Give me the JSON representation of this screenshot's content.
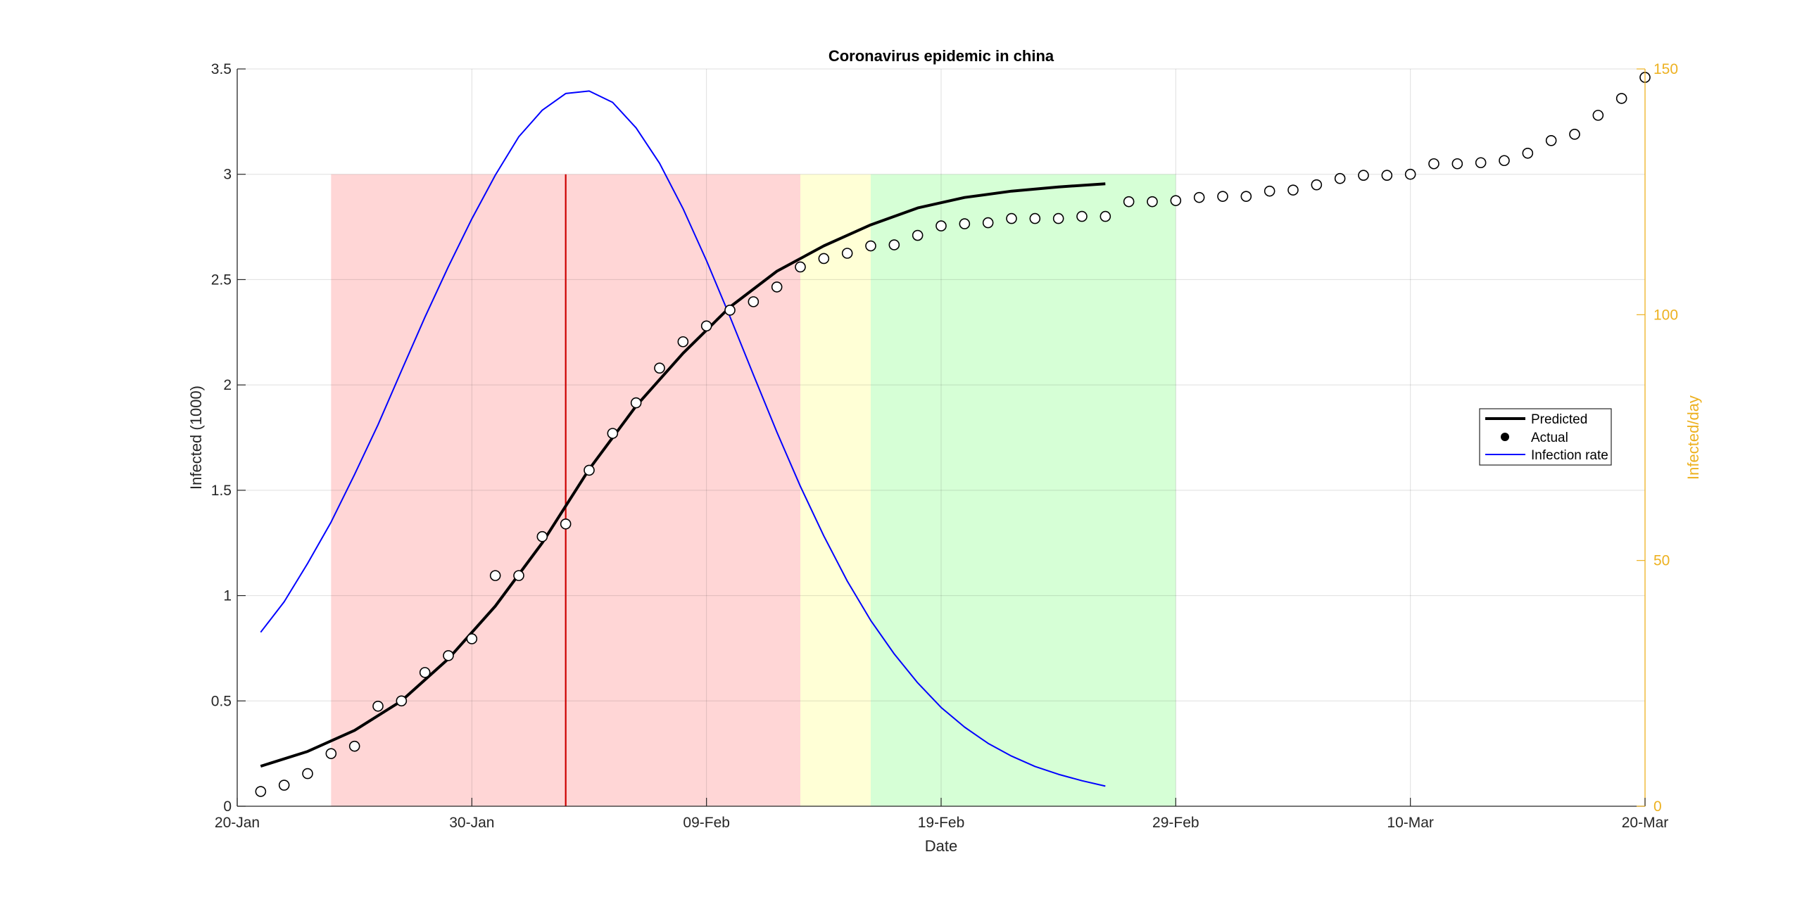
{
  "chart_data": {
    "type": "line",
    "title": "Coronavirus epidemic in china",
    "xlabel": "Date",
    "ylabel": "Infected (1000)",
    "y2label": "Infected/day",
    "x_ticks": [
      "20-Jan",
      "30-Jan",
      "09-Feb",
      "19-Feb",
      "29-Feb",
      "10-Mar",
      "20-Mar"
    ],
    "x_start": "20-Jan",
    "x_end": "20-Mar",
    "ylim": [
      0,
      3.5
    ],
    "y_ticks": [
      "0",
      "0.5",
      "1",
      "1.5",
      "2",
      "2.5",
      "3",
      "3.5"
    ],
    "y2lim": [
      0,
      150
    ],
    "y2_ticks": [
      "0",
      "50",
      "100",
      "150"
    ],
    "grid": true,
    "legend_position": "right",
    "colors": {
      "predicted": "#000000",
      "actual_marker": "#000000",
      "infection_rate": "#0000FF",
      "right_axis": "#EDB120",
      "vertical_line": "#CC0000",
      "shade_red": "#FFD6D6",
      "shade_yellow": "#FFFFD6",
      "shade_green": "#D6FFD6"
    },
    "shaded_regions": [
      {
        "from": "24-Jan",
        "to": "13-Feb",
        "color": "#FFD6D6",
        "ymax": 3.0
      },
      {
        "from": "13-Feb",
        "to": "16-Feb",
        "color": "#FFFFD6",
        "ymax": 3.0
      },
      {
        "from": "16-Feb",
        "to": "29-Feb",
        "color": "#D6FFD6",
        "ymax": 3.0
      }
    ],
    "vertical_line": {
      "x": "03-Feb",
      "ymax": 3.0
    },
    "series": [
      {
        "name": "Predicted",
        "axis": "left",
        "style": "line",
        "x": [
          "21-Jan",
          "23-Jan",
          "25-Jan",
          "27-Jan",
          "29-Jan",
          "31-Jan",
          "02-Feb",
          "04-Feb",
          "06-Feb",
          "08-Feb",
          "10-Feb",
          "12-Feb",
          "14-Feb",
          "16-Feb",
          "18-Feb",
          "20-Feb",
          "22-Feb",
          "24-Feb",
          "26-Feb"
        ],
        "values": [
          0.19,
          0.26,
          0.36,
          0.5,
          0.7,
          0.95,
          1.25,
          1.6,
          1.9,
          2.15,
          2.37,
          2.54,
          2.66,
          2.76,
          2.84,
          2.89,
          2.92,
          2.94,
          2.955
        ]
      },
      {
        "name": "Actual",
        "axis": "left",
        "style": "marker",
        "x": [
          "21-Jan",
          "22-Jan",
          "23-Jan",
          "24-Jan",
          "25-Jan",
          "26-Jan",
          "27-Jan",
          "28-Jan",
          "29-Jan",
          "30-Jan",
          "31-Jan",
          "01-Feb",
          "02-Feb",
          "03-Feb",
          "04-Feb",
          "05-Feb",
          "06-Feb",
          "07-Feb",
          "08-Feb",
          "09-Feb",
          "10-Feb",
          "11-Feb",
          "12-Feb",
          "13-Feb",
          "14-Feb",
          "15-Feb",
          "16-Feb",
          "17-Feb",
          "18-Feb",
          "19-Feb",
          "20-Feb",
          "21-Feb",
          "22-Feb",
          "23-Feb",
          "24-Feb",
          "25-Feb",
          "26-Feb",
          "27-Feb",
          "28-Feb",
          "29-Feb",
          "01-Mar",
          "02-Mar",
          "03-Mar",
          "04-Mar",
          "05-Mar",
          "06-Mar",
          "07-Mar",
          "08-Mar",
          "09-Mar",
          "10-Mar",
          "11-Mar",
          "12-Mar",
          "13-Mar",
          "14-Mar",
          "15-Mar",
          "16-Mar",
          "17-Mar",
          "18-Mar",
          "19-Mar",
          "20-Mar"
        ],
        "values": [
          0.07,
          0.1,
          0.155,
          0.25,
          0.285,
          0.475,
          0.5,
          0.635,
          0.715,
          0.795,
          1.095,
          1.095,
          1.28,
          1.34,
          1.595,
          1.77,
          1.915,
          2.08,
          2.205,
          2.28,
          2.355,
          2.395,
          2.465,
          2.56,
          2.6,
          2.625,
          2.66,
          2.665,
          2.71,
          2.755,
          2.765,
          2.77,
          2.79,
          2.79,
          2.79,
          2.8,
          2.8,
          2.87,
          2.87,
          2.875,
          2.89,
          2.895,
          2.895,
          2.92,
          2.925,
          2.95,
          2.98,
          2.995,
          2.995,
          3.0,
          3.05,
          3.05,
          3.055,
          3.065,
          3.1,
          3.16,
          3.19,
          3.28,
          3.36,
          3.46
        ]
      },
      {
        "name": "Infection rate",
        "axis": "right",
        "style": "line",
        "x": [
          "21-Jan",
          "22-Jan",
          "23-Jan",
          "24-Jan",
          "25-Jan",
          "26-Jan",
          "27-Jan",
          "28-Jan",
          "29-Jan",
          "30-Jan",
          "31-Jan",
          "01-Feb",
          "02-Feb",
          "03-Feb",
          "04-Feb",
          "05-Feb",
          "06-Feb",
          "07-Feb",
          "08-Feb",
          "09-Feb",
          "10-Feb",
          "11-Feb",
          "12-Feb",
          "13-Feb",
          "14-Feb",
          "15-Feb",
          "16-Feb",
          "17-Feb",
          "18-Feb",
          "19-Feb",
          "20-Feb",
          "21-Feb",
          "22-Feb",
          "23-Feb",
          "24-Feb",
          "25-Feb",
          "26-Feb"
        ],
        "values": [
          35.4,
          41.6,
          49.4,
          57.8,
          67.5,
          77.6,
          88.6,
          99.5,
          109.8,
          119.5,
          128.4,
          136.2,
          141.6,
          145.0,
          145.5,
          143.2,
          138.0,
          130.8,
          121.6,
          111.0,
          99.6,
          87.8,
          76.1,
          65.1,
          55.0,
          45.8,
          37.8,
          31.0,
          25.1,
          20.1,
          16.1,
          12.8,
          10.2,
          8.1,
          6.5,
          5.2,
          4.1
        ]
      }
    ]
  }
}
